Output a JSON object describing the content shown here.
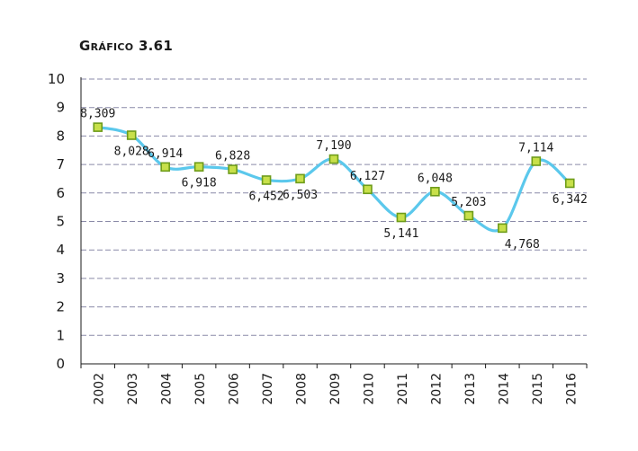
{
  "chart_data": {
    "type": "line",
    "title": "Gráfico 3.61",
    "xlabel": "",
    "ylabel": "",
    "ylim": [
      0,
      10
    ],
    "yticks": [
      "0",
      "1",
      "2",
      "3",
      "4",
      "5",
      "6",
      "7",
      "8",
      "9",
      "10"
    ],
    "categories": [
      "2002",
      "2003",
      "2004",
      "2005",
      "2006",
      "2007",
      "2008",
      "2009",
      "2010",
      "2011",
      "2012",
      "2013",
      "2014",
      "2015",
      "2016"
    ],
    "series": [
      {
        "values": [
          8.309,
          8.028,
          6.914,
          6.918,
          6.828,
          6.452,
          6.503,
          7.19,
          6.127,
          5.141,
          6.048,
          5.203,
          4.768,
          7.114,
          6.342
        ],
        "labels": [
          "8,309",
          "8,028",
          "6,914",
          "6,918",
          "6,828",
          "6,452",
          "6,503",
          "7,190",
          "6,127",
          "5,141",
          "6,048",
          "5,203",
          "4,768",
          "7,114",
          "6,342"
        ]
      }
    ],
    "grid": true,
    "colors": {
      "line": "#5bc8ec",
      "marker_fill": "#c8e04a",
      "marker_edge": "#6e9c1a",
      "grid": "#8a8aa8"
    }
  }
}
